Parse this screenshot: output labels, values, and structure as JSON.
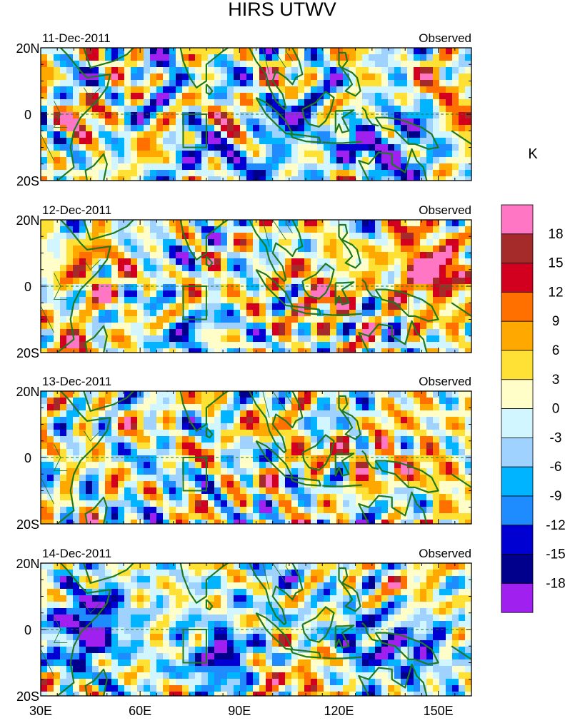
{
  "title": "HIRS UTWV",
  "panels": [
    {
      "date": "11-Dec-2011",
      "label": "Observed",
      "seed": 11
    },
    {
      "date": "12-Dec-2011",
      "label": "Observed",
      "seed": 23
    },
    {
      "date": "13-Dec-2011",
      "label": "Observed",
      "seed": 37
    },
    {
      "date": "14-Dec-2011",
      "label": "Observed",
      "seed": 51
    }
  ],
  "lat_labels": [
    "20N",
    "0",
    "20S"
  ],
  "lon_labels": [
    "30E",
    "60E",
    "90E",
    "120E",
    "150E"
  ],
  "colorbar": {
    "unit": "K",
    "levels": [
      "18",
      "15",
      "12",
      "9",
      "6",
      "3",
      "0",
      "-3",
      "-6",
      "-9",
      "-12",
      "-15",
      "-18"
    ],
    "colors": [
      "#ff77c4",
      "#a52a2a",
      "#d2001e",
      "#ff7000",
      "#ffa800",
      "#ffe135",
      "#fffdc8",
      "#d2f6ff",
      "#a0d2ff",
      "#00b4ff",
      "#1e8cff",
      "#0000d2",
      "#00008c",
      "#a020f0"
    ]
  },
  "map": {
    "coast_color": "#1f7a1f",
    "box_color": "#1f7a1f",
    "equator_color": "#1f7a1f"
  }
}
